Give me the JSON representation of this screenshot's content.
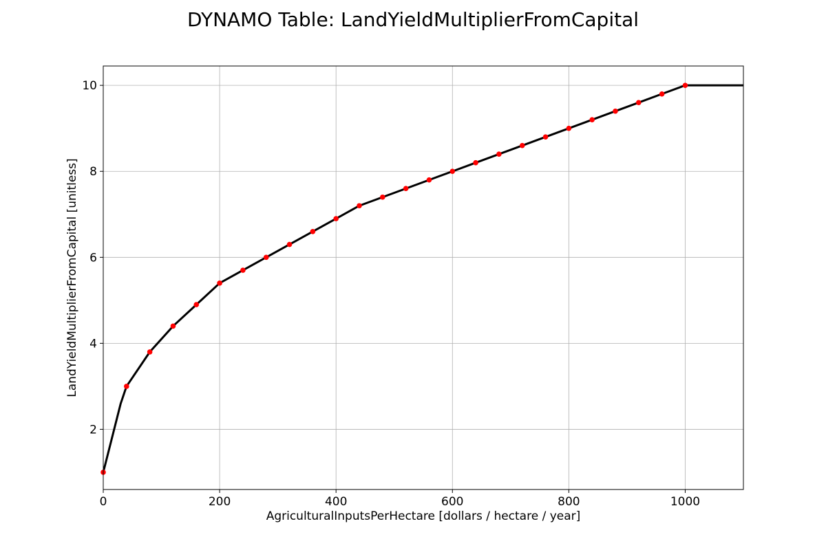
{
  "chart_data": {
    "type": "line",
    "title": "DYNAMO Table: LandYieldMultiplierFromCapital",
    "xlabel": "AgriculturalInputsPerHectare [dollars / hectare / year]",
    "ylabel": "LandYieldMultiplierFromCapital [unitless]",
    "xlim": [
      0,
      1100
    ],
    "ylim": [
      0.6,
      10.45
    ],
    "xticks": [
      0,
      200,
      400,
      600,
      800,
      1000
    ],
    "yticks": [
      2,
      4,
      6,
      8,
      10
    ],
    "grid": true,
    "line_color": "#000000",
    "marker_color": "#ff0000",
    "line": {
      "x": [
        0,
        30,
        40,
        80,
        120,
        160,
        200,
        240,
        280,
        320,
        360,
        400,
        440,
        480,
        520,
        560,
        600,
        640,
        680,
        720,
        760,
        800,
        840,
        880,
        920,
        960,
        1000,
        1100
      ],
      "y": [
        1.0,
        2.6,
        3.0,
        3.8,
        4.4,
        4.9,
        5.4,
        5.7,
        6.0,
        6.3,
        6.6,
        6.9,
        7.2,
        7.4,
        7.6,
        7.8,
        8.0,
        8.2,
        8.4,
        8.6,
        8.8,
        9.0,
        9.2,
        9.4,
        9.6,
        9.8,
        10.0,
        10.0
      ]
    },
    "points": {
      "x": [
        0,
        40,
        80,
        120,
        160,
        200,
        240,
        280,
        320,
        360,
        400,
        440,
        480,
        520,
        560,
        600,
        640,
        680,
        720,
        760,
        800,
        840,
        880,
        920,
        960,
        1000
      ],
      "y": [
        1.0,
        3.0,
        3.8,
        4.4,
        4.9,
        5.4,
        5.7,
        6.0,
        6.3,
        6.6,
        6.9,
        7.2,
        7.4,
        7.6,
        7.8,
        8.0,
        8.2,
        8.4,
        8.6,
        8.8,
        9.0,
        9.2,
        9.4,
        9.6,
        9.8,
        10.0
      ]
    }
  }
}
